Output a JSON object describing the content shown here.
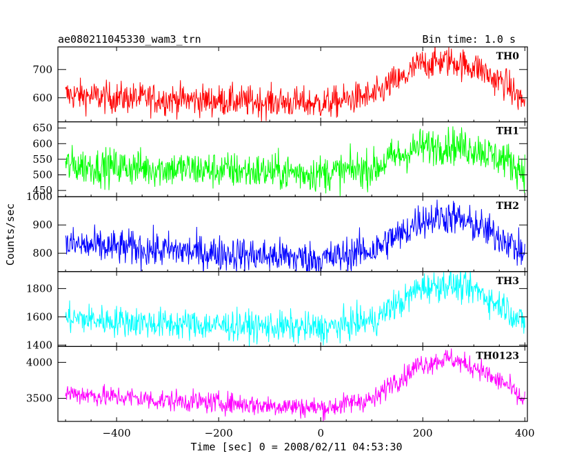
{
  "header": {
    "title": "ae080211045330_wam3_trn",
    "bin_time": "Bin time: 1.0 s"
  },
  "axes": {
    "xlabel": "Time [sec] 0 = 2008/02/11 04:53:30",
    "ylabel": "Counts/sec"
  },
  "chart_data": {
    "type": "line",
    "title": "ae080211045330_wam3_trn",
    "xlabel": "Time [sec] 0 = 2008/02/11 04:53:30",
    "ylabel": "Counts/sec",
    "xlim": [
      -515,
      405
    ],
    "x_ticks": [
      -400,
      -200,
      0,
      200,
      400
    ],
    "x_tick_labels": [
      "−400",
      "−200",
      "0",
      "200",
      "400"
    ],
    "bin_time_s": 1.0,
    "x_profile": [
      -500,
      -400,
      -300,
      -200,
      -100,
      0,
      100,
      150,
      200,
      250,
      300,
      350,
      400
    ],
    "panels": [
      {
        "name": "TH0",
        "color": "#ff0000",
        "ylim": [
          515,
          780
        ],
        "y_ticks": [
          600,
          700
        ],
        "y_tick_labels": [
          "600",
          "700"
        ],
        "trend": [
          610,
          600,
          595,
          590,
          585,
          580,
          605,
          660,
          720,
          730,
          710,
          660,
          590
        ],
        "noise": 28
      },
      {
        "name": "TH1",
        "color": "#00ff00",
        "ylim": [
          430,
          670
        ],
        "y_ticks": [
          450,
          500,
          550,
          600,
          650
        ],
        "y_tick_labels": [
          "450",
          "500",
          "550",
          "600",
          "650"
        ],
        "trend": [
          530,
          525,
          520,
          515,
          510,
          505,
          520,
          560,
          590,
          595,
          585,
          555,
          515
        ],
        "noise": 30
      },
      {
        "name": "TH2",
        "color": "#0000ff",
        "ylim": [
          735,
          1000
        ],
        "y_ticks": [
          800,
          900,
          1000
        ],
        "y_tick_labels": [
          "800",
          "900",
          "1000"
        ],
        "trend": [
          830,
          820,
          810,
          800,
          790,
          780,
          810,
          860,
          920,
          930,
          900,
          860,
          800
        ],
        "noise": 32
      },
      {
        "name": "TH3",
        "color": "#00ffff",
        "ylim": [
          1390,
          1920
        ],
        "y_ticks": [
          1400,
          1600,
          1800
        ],
        "y_tick_labels": [
          "1400",
          "1600",
          "1800"
        ],
        "trend": [
          1590,
          1570,
          1550,
          1540,
          1530,
          1520,
          1570,
          1690,
          1810,
          1830,
          1790,
          1690,
          1560
        ],
        "noise": 55
      },
      {
        "name": "TH0123",
        "color": "#ff00ff",
        "ylim": [
          3180,
          4220
        ],
        "y_ticks": [
          3500,
          4000
        ],
        "y_tick_labels": [
          "3500",
          "4000"
        ],
        "trend": [
          3570,
          3520,
          3470,
          3440,
          3400,
          3370,
          3480,
          3760,
          3980,
          4050,
          3940,
          3740,
          3480
        ],
        "noise": 75
      }
    ]
  }
}
